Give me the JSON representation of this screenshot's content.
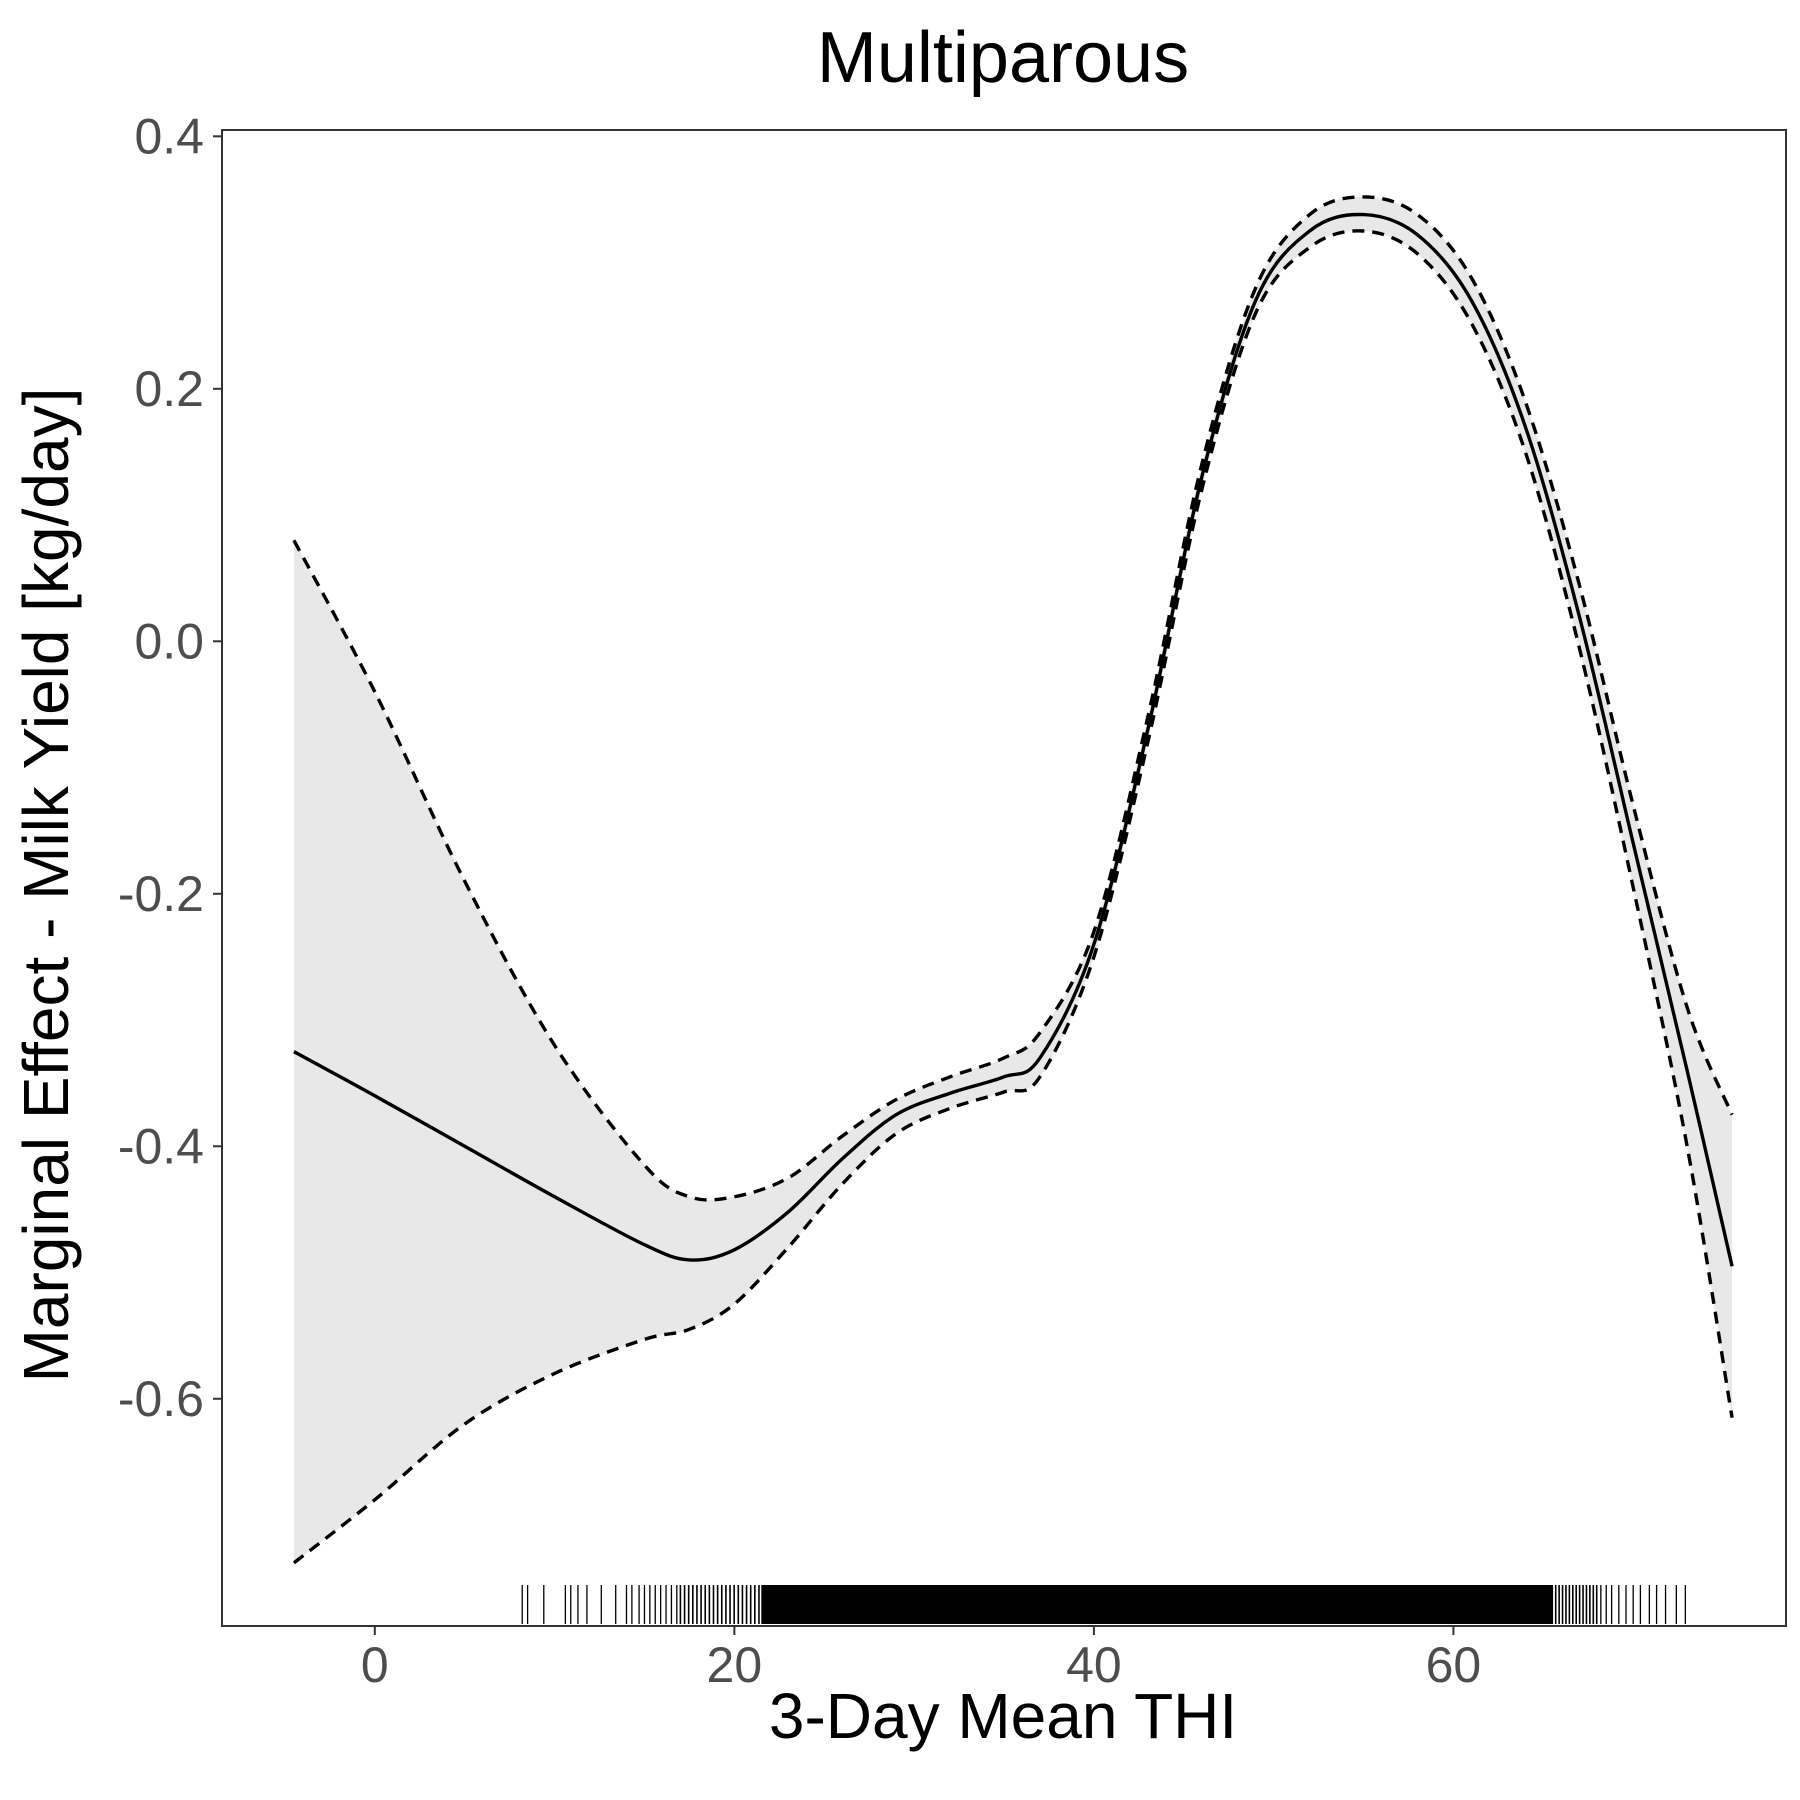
{
  "chart_data": {
    "type": "line",
    "title": "Multiparous",
    "xlabel": "3-Day Mean THI",
    "ylabel": "Marginal Effect - Milk Yield [kg/day]",
    "xlim": [
      -8.5,
      78.5
    ],
    "ylim": [
      -0.78,
      0.405
    ],
    "x_ticks": [
      0,
      20,
      40,
      60
    ],
    "x_tick_labels": [
      "0",
      "20",
      "40",
      "60"
    ],
    "y_ticks": [
      -0.6,
      -0.4,
      -0.2,
      0.0,
      0.2,
      0.4
    ],
    "y_tick_labels": [
      "-0.6",
      "-0.4",
      "-0.2",
      "0.0",
      "0.2",
      "0.4"
    ],
    "grid": false,
    "confidence_band_color": "#e8e8e8",
    "line_color": "#000000",
    "series": [
      {
        "role": "estimate",
        "style": "solid",
        "x": [
          -4.5,
          0,
          5,
          10,
          15,
          17.5,
          20,
          23,
          26,
          29,
          32,
          35,
          37,
          40,
          43,
          46,
          49,
          52,
          55,
          58,
          61,
          64,
          67,
          70,
          73,
          75.5
        ],
        "y": [
          -0.325,
          -0.36,
          -0.4,
          -0.44,
          -0.478,
          -0.49,
          -0.482,
          -0.452,
          -0.41,
          -0.375,
          -0.358,
          -0.345,
          -0.33,
          -0.24,
          -0.07,
          0.13,
          0.27,
          0.325,
          0.338,
          0.322,
          0.27,
          0.17,
          0.02,
          -0.16,
          -0.34,
          -0.495
        ]
      },
      {
        "role": "upper",
        "style": "dashed",
        "x": [
          -4.5,
          0,
          5,
          10,
          15,
          17.5,
          20,
          23,
          26,
          29,
          32,
          35,
          37,
          40,
          43,
          46,
          49,
          52,
          55,
          58,
          61,
          64,
          67,
          70,
          73,
          75.5
        ],
        "y": [
          0.08,
          -0.04,
          -0.19,
          -0.32,
          -0.415,
          -0.44,
          -0.44,
          -0.425,
          -0.392,
          -0.363,
          -0.345,
          -0.33,
          -0.31,
          -0.23,
          -0.06,
          0.14,
          0.28,
          0.338,
          0.352,
          0.338,
          0.288,
          0.19,
          0.045,
          -0.13,
          -0.29,
          -0.375
        ]
      },
      {
        "role": "lower",
        "style": "dashed",
        "x": [
          -4.5,
          0,
          5,
          10,
          15,
          17.5,
          20,
          23,
          26,
          29,
          32,
          35,
          37,
          40,
          43,
          46,
          49,
          52,
          55,
          58,
          61,
          64,
          67,
          70,
          73,
          75.5
        ],
        "y": [
          -0.73,
          -0.68,
          -0.62,
          -0.58,
          -0.553,
          -0.545,
          -0.525,
          -0.48,
          -0.43,
          -0.39,
          -0.37,
          -0.357,
          -0.345,
          -0.25,
          -0.08,
          0.12,
          0.26,
          0.312,
          0.325,
          0.307,
          0.252,
          0.15,
          -0.005,
          -0.195,
          -0.4,
          -0.615
        ]
      }
    ],
    "rug": {
      "range": [
        8,
        73
      ],
      "dense_range": [
        17,
        68
      ],
      "sparse_values": [
        8.2,
        8.5,
        9.4,
        10.6,
        10.9,
        11.3,
        11.8,
        12.6,
        13.4,
        14.0,
        14.3,
        14.7,
        15.0,
        15.3,
        15.6,
        15.9,
        16.2,
        16.5,
        16.8,
        68.2,
        68.5,
        68.8,
        69.2,
        69.6,
        70.0,
        70.4,
        70.9,
        71.3,
        71.8,
        72.4,
        72.9
      ]
    }
  }
}
